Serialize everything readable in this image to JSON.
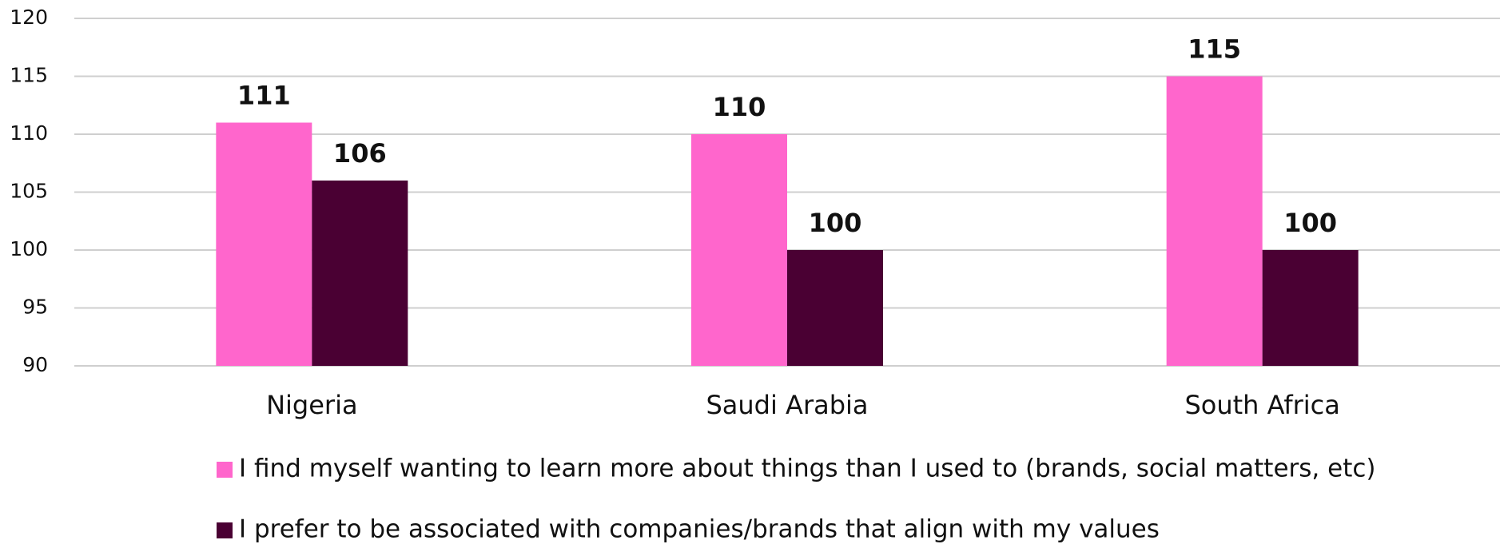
{
  "chart_data": {
    "type": "bar",
    "categories": [
      "Nigeria",
      "Saudi Arabia",
      "South Africa"
    ],
    "series": [
      {
        "name": "I find myself wanting to learn more about things than I used to (brands, social matters, etc)",
        "color": "#ff66cc",
        "values": [
          111,
          110,
          115
        ]
      },
      {
        "name": "I prefer to be associated with companies/brands that align with my values",
        "color": "#4a0033",
        "values": [
          106,
          100,
          100
        ]
      }
    ],
    "ylim": [
      90,
      120
    ],
    "yticks": [
      90,
      95,
      100,
      105,
      110,
      115,
      120
    ],
    "grid": true,
    "legend": "bottom"
  }
}
